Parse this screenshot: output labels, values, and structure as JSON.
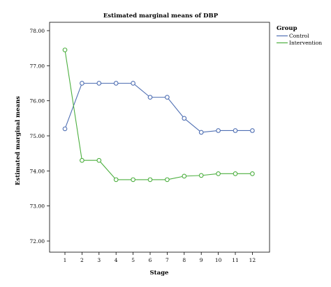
{
  "chart_data": {
    "type": "line",
    "title": "Estimated marginal means of DBP",
    "xlabel": "Stage",
    "ylabel": "Estimated marginal means",
    "x": [
      1,
      2,
      3,
      4,
      5,
      6,
      7,
      8,
      9,
      10,
      11,
      12
    ],
    "x_tick_labels": [
      "1",
      "2",
      "3",
      "4",
      "5",
      "6",
      "7",
      "8",
      "9",
      "10",
      "11",
      "12"
    ],
    "y_ticks": [
      72,
      73,
      74,
      75,
      76,
      77,
      78
    ],
    "y_tick_labels": [
      "72.00",
      "73.00",
      "74.00",
      "75.00",
      "76.00",
      "77.00",
      "78.00"
    ],
    "ylim": [
      72,
      78
    ],
    "grid": false,
    "legend": {
      "title": "Group",
      "placement": "right"
    },
    "series": [
      {
        "name": "Control",
        "color": "#4f6fb3",
        "values": [
          75.2,
          76.5,
          76.5,
          76.5,
          76.5,
          76.1,
          76.1,
          75.5,
          75.1,
          75.15,
          75.15,
          75.15
        ]
      },
      {
        "name": "Intervention",
        "color": "#4caf3f",
        "values": [
          77.45,
          74.3,
          74.3,
          73.75,
          73.75,
          73.75,
          73.75,
          73.85,
          73.87,
          73.92,
          73.92,
          73.92
        ]
      }
    ]
  }
}
